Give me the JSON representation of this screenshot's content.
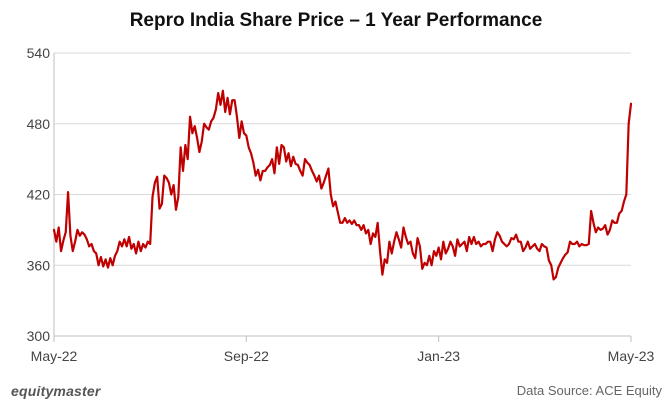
{
  "chart_data": {
    "type": "line",
    "title": "Repro India Share Price – 1 Year Performance",
    "xlabel": "",
    "ylabel": "",
    "ylim": [
      300,
      540
    ],
    "yticks": [
      300,
      360,
      420,
      480,
      540
    ],
    "xtick_labels": [
      "May-22",
      "Sep-22",
      "Jan-23",
      "May-23"
    ],
    "grid": true,
    "series": [
      {
        "name": "Repro India",
        "color": "#c00000",
        "values": [
          390,
          380,
          392,
          372,
          381,
          388,
          422,
          385,
          372,
          380,
          390,
          385,
          388,
          386,
          382,
          376,
          378,
          372,
          370,
          360,
          367,
          359,
          365,
          358,
          366,
          360,
          368,
          372,
          380,
          376,
          382,
          376,
          384,
          374,
          378,
          370,
          380,
          372,
          378,
          375,
          380,
          378,
          418,
          430,
          435,
          408,
          412,
          436,
          434,
          430,
          420,
          428,
          407,
          418,
          460,
          440,
          462,
          450,
          486,
          472,
          478,
          468,
          456,
          465,
          480,
          477,
          475,
          482,
          485,
          492,
          506,
          496,
          508,
          490,
          502,
          488,
          500,
          500,
          486,
          468,
          482,
          472,
          470,
          460,
          455,
          447,
          436,
          441,
          432,
          440,
          440,
          443,
          445,
          450,
          438,
          460,
          446,
          462,
          460,
          448,
          455,
          444,
          452,
          446,
          445,
          440,
          436,
          450,
          447,
          445,
          440,
          436,
          431,
          436,
          425,
          430,
          436,
          442,
          420,
          410,
          414,
          405,
          396,
          396,
          400,
          396,
          398,
          395,
          398,
          394,
          394,
          390,
          394,
          387,
          390,
          378,
          387,
          384,
          396,
          372,
          352,
          365,
          362,
          380,
          370,
          380,
          388,
          382,
          375,
          392,
          384,
          378,
          380,
          370,
          366,
          383,
          376,
          357,
          362,
          360,
          368,
          360,
          372,
          368,
          375,
          365,
          380,
          370,
          374,
          380,
          376,
          368,
          382,
          376,
          378,
          380,
          372,
          384,
          378,
          384,
          378,
          380,
          376,
          378,
          378,
          380,
          380,
          372,
          382,
          388,
          385,
          380,
          378,
          376,
          378,
          383,
          382,
          386,
          380,
          380,
          372,
          375,
          380,
          374,
          376,
          378,
          374,
          372,
          378,
          376,
          375,
          364,
          360,
          348,
          350,
          358,
          362,
          366,
          369,
          371,
          380,
          378,
          378,
          380,
          376,
          378,
          377,
          377,
          378,
          406,
          396,
          388,
          392,
          390,
          391,
          394,
          386,
          390,
          398,
          396,
          396,
          404,
          406,
          414,
          420,
          480,
          497
        ]
      }
    ]
  },
  "footer": {
    "brand": "equitymaster",
    "source": "Data Source: ACE Equity"
  }
}
